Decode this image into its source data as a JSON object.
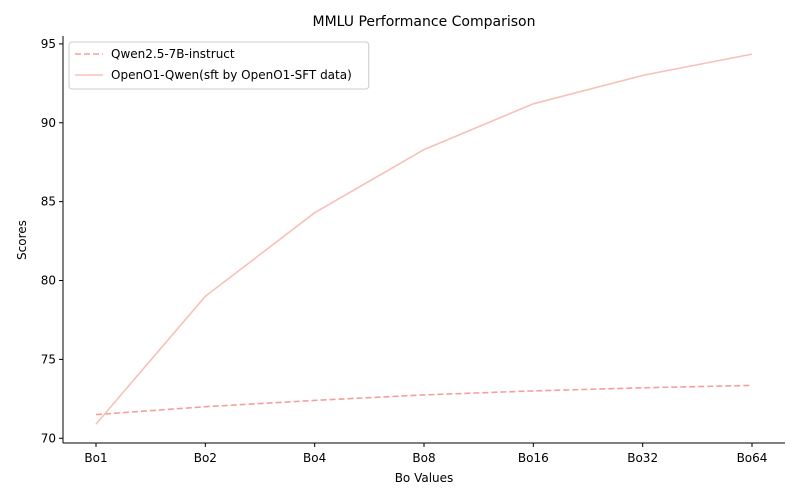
{
  "chart_data": {
    "type": "line",
    "title": "MMLU Performance Comparison",
    "xlabel": "Bo Values",
    "ylabel": "Scores",
    "categories": [
      "Bo1",
      "Bo2",
      "Bo4",
      "Bo8",
      "Bo16",
      "Bo32",
      "Bo64"
    ],
    "ylim": [
      69.7,
      95.5
    ],
    "yticks": [
      70,
      75,
      80,
      85,
      90,
      95
    ],
    "legend_position": "top-left",
    "series": [
      {
        "name": "Qwen2.5-7B-instruct",
        "style": "dashed",
        "color": "#f4a09a",
        "values": [
          71.5,
          72.0,
          72.4,
          72.75,
          73.0,
          73.2,
          73.35
        ]
      },
      {
        "name": "OpenO1-Qwen(sft by OpenO1-SFT data)",
        "style": "solid",
        "color": "#f7c0b8",
        "values": [
          70.9,
          79.0,
          84.3,
          88.3,
          91.2,
          93.0,
          94.35
        ]
      }
    ]
  }
}
